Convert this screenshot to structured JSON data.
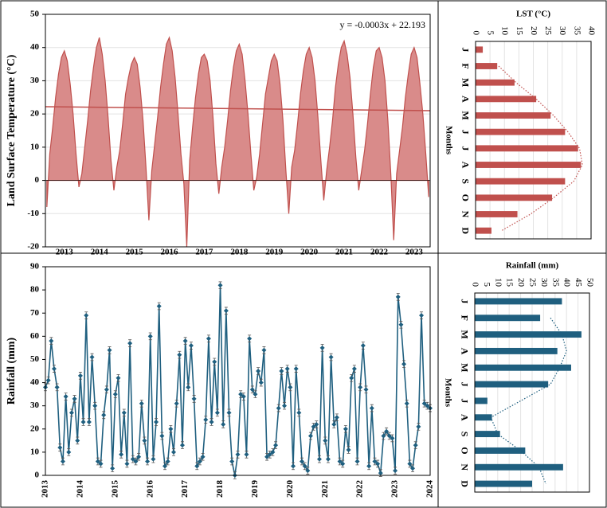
{
  "chart_data": [
    {
      "type": "area",
      "ylabel": "Land Surface Temperature (°C)",
      "annotation": "y = -0.0003x + 22.193",
      "color": "#c0504d",
      "fill": "#d98b8a",
      "ylim": [
        -20,
        50
      ],
      "yticks": [
        -20,
        -10,
        0,
        10,
        20,
        30,
        40,
        50
      ],
      "grid": true,
      "trend_line": {
        "start": 22.2,
        "end": 21.0,
        "color": "#c0504d"
      },
      "categories": [
        null,
        null,
        null,
        null,
        null,
        null,
        "2013",
        null,
        null,
        null,
        null,
        null,
        null,
        null,
        null,
        null,
        null,
        null,
        "2014",
        null,
        null,
        null,
        null,
        null,
        null,
        null,
        null,
        null,
        null,
        null,
        "2015",
        null,
        null,
        null,
        null,
        null,
        null,
        null,
        null,
        null,
        null,
        null,
        "2016",
        null,
        null,
        null,
        null,
        null,
        null,
        null,
        null,
        null,
        null,
        null,
        "2017",
        null,
        null,
        null,
        null,
        null,
        null,
        null,
        null,
        null,
        null,
        null,
        "2018",
        null,
        null,
        null,
        null,
        null,
        null,
        null,
        null,
        null,
        null,
        null,
        "2019",
        null,
        null,
        null,
        null,
        null,
        null,
        null,
        null,
        null,
        null,
        null,
        "2020",
        null,
        null,
        null,
        null,
        null,
        null,
        null,
        null,
        null,
        null,
        null,
        "2021",
        null,
        null,
        null,
        null,
        null,
        null,
        null,
        null,
        null,
        null,
        null,
        "2022",
        null,
        null,
        null,
        null,
        null,
        null,
        null,
        null,
        null,
        null,
        null,
        "2023",
        null,
        null,
        null,
        null,
        null
      ],
      "values": [
        -8,
        8,
        16,
        25,
        32,
        37,
        39,
        36,
        29,
        20,
        8,
        -2,
        2,
        10,
        18,
        27,
        34,
        40,
        43,
        38,
        30,
        19,
        6,
        -3,
        4,
        9,
        17,
        26,
        31,
        35,
        37,
        35,
        28,
        18,
        4,
        -12,
        3,
        11,
        19,
        28,
        35,
        41,
        43,
        39,
        31,
        20,
        8,
        -1,
        -20,
        6,
        16,
        25,
        32,
        37,
        38,
        36,
        30,
        19,
        5,
        -4,
        4,
        10,
        18,
        27,
        34,
        39,
        41,
        38,
        30,
        20,
        8,
        -3,
        1,
        8,
        17,
        26,
        31,
        36,
        38,
        36,
        29,
        18,
        3,
        -10,
        4,
        9,
        17,
        26,
        33,
        38,
        40,
        37,
        30,
        19,
        6,
        -6,
        3,
        10,
        18,
        28,
        35,
        40,
        42,
        38,
        31,
        20,
        7,
        -3,
        3,
        9,
        17,
        26,
        34,
        39,
        40,
        37,
        30,
        18,
        2,
        -18,
        2,
        9,
        16,
        25,
        32,
        38,
        40,
        37,
        29,
        20,
        8,
        -5
      ]
    },
    {
      "type": "line",
      "ylabel": "Rainfall (mm)",
      "color": "#1f5f7f",
      "error": 1.5,
      "ylim": [
        0,
        90
      ],
      "yticks": [
        0,
        10,
        20,
        30,
        40,
        50,
        60,
        70,
        80,
        90
      ],
      "grid": false,
      "categories": [
        "2013",
        null,
        null,
        null,
        null,
        null,
        null,
        null,
        null,
        null,
        null,
        null,
        "2014",
        null,
        null,
        null,
        null,
        null,
        null,
        null,
        null,
        null,
        null,
        null,
        "2015",
        null,
        null,
        null,
        null,
        null,
        null,
        null,
        null,
        null,
        null,
        null,
        "2016",
        null,
        null,
        null,
        null,
        null,
        null,
        null,
        null,
        null,
        null,
        null,
        "2017",
        null,
        null,
        null,
        null,
        null,
        null,
        null,
        null,
        null,
        null,
        null,
        "2018",
        null,
        null,
        null,
        null,
        null,
        null,
        null,
        null,
        null,
        null,
        null,
        "2019",
        null,
        null,
        null,
        null,
        null,
        null,
        null,
        null,
        null,
        null,
        null,
        "2020",
        null,
        null,
        null,
        null,
        null,
        null,
        null,
        null,
        null,
        null,
        null,
        "2021",
        null,
        null,
        null,
        null,
        null,
        null,
        null,
        null,
        null,
        null,
        null,
        "2022",
        null,
        null,
        null,
        null,
        null,
        null,
        null,
        null,
        null,
        null,
        null,
        "2023",
        null,
        null,
        null,
        null,
        null,
        null,
        null,
        null,
        null,
        null,
        null,
        "2024"
      ],
      "values": [
        38,
        41,
        58,
        46,
        38,
        12,
        6,
        34,
        10,
        27,
        33,
        15,
        43,
        23,
        69,
        23,
        51,
        30,
        6,
        5,
        26,
        37,
        54,
        3,
        35,
        42,
        9,
        27,
        5,
        57,
        7,
        6,
        8,
        31,
        15,
        6,
        60,
        7,
        23,
        73,
        17,
        4,
        6,
        20,
        10,
        31,
        52,
        13,
        58,
        38,
        56,
        33,
        4,
        6,
        8,
        24,
        59,
        23,
        49,
        27,
        82,
        22,
        71,
        27,
        6,
        0,
        9,
        35,
        34,
        9,
        59,
        37,
        35,
        45,
        40,
        54,
        8,
        9,
        10,
        13,
        29,
        45,
        30,
        46,
        38,
        4,
        46,
        27,
        6,
        4,
        2,
        17,
        21,
        22,
        7,
        55,
        15,
        7,
        51,
        22,
        25,
        6,
        5,
        20,
        11,
        42,
        46,
        6,
        38,
        56,
        37,
        4,
        29,
        6,
        5,
        1,
        17,
        19,
        17,
        16,
        2,
        77,
        65,
        48,
        31,
        5,
        3,
        13,
        21,
        69,
        31,
        30,
        29
      ]
    },
    {
      "type": "hbar",
      "title": "LST (°C)",
      "ylabel": "Months",
      "color": "#c0504d",
      "trend_color": "#c0504d",
      "xlim": [
        0,
        40
      ],
      "xticks": [
        0,
        5,
        10,
        15,
        20,
        25,
        30,
        35,
        40
      ],
      "grid": true,
      "categories": [
        "J",
        "F",
        "M",
        "A",
        "M",
        "J",
        "J",
        "A",
        "S",
        "O",
        "N",
        "D"
      ],
      "values": [
        2.5,
        7.5,
        13.5,
        21,
        26,
        31,
        35.5,
        36.5,
        31,
        26.5,
        14.5,
        5.5
      ],
      "trend": [
        null,
        8,
        14,
        21,
        27,
        32,
        36,
        37,
        34,
        27,
        19,
        9
      ]
    },
    {
      "type": "hbar",
      "title": "Rainfall (mm)",
      "ylabel": "Months",
      "color": "#1f5f7f",
      "trend_color": "#1f5f7f",
      "xlim": [
        0,
        50
      ],
      "xticks": [
        0,
        5,
        10,
        15,
        20,
        25,
        30,
        35,
        40,
        45,
        50
      ],
      "grid": true,
      "categories": [
        "J",
        "F",
        "M",
        "A",
        "M",
        "J",
        "J",
        "A",
        "S",
        "O",
        "N",
        "D"
      ],
      "values": [
        38,
        28.5,
        46.5,
        36,
        42,
        32,
        5.5,
        7.5,
        11,
        22,
        38.5,
        25
      ],
      "trend": [
        null,
        33,
        38,
        40,
        37,
        33,
        20,
        7,
        10,
        20,
        28,
        31
      ]
    }
  ]
}
